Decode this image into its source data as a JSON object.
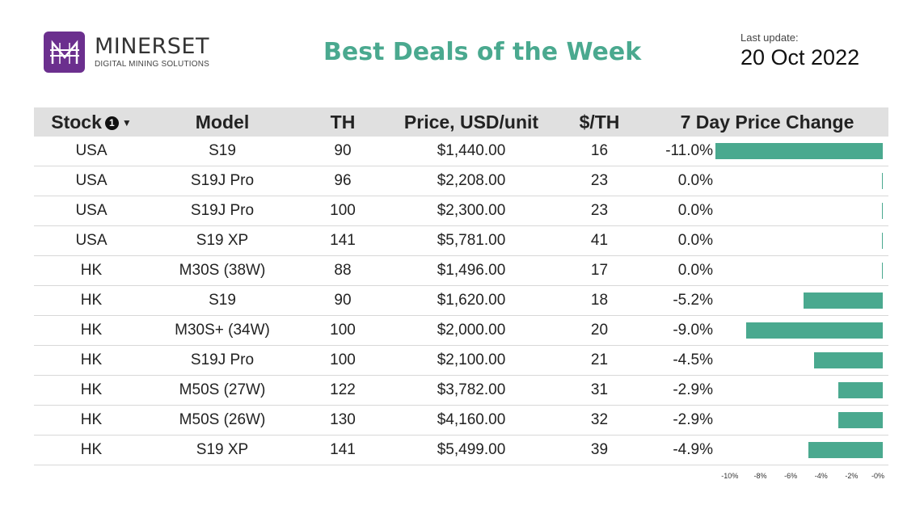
{
  "header": {
    "logo_name": "MINERSET",
    "logo_tagline": "DIGITAL MINING SOLUTIONS",
    "title": "Best Deals of the Week",
    "last_update_label": "Last update:",
    "last_update_date": "20 Oct 2022"
  },
  "colors": {
    "accent": "#4aa98f",
    "logo_bg": "#6b2f8e",
    "header_bg": "#e0e0e0"
  },
  "icons": {
    "logo": "minerset-logo-icon",
    "info": "info-icon",
    "sort": "sort-down-icon"
  },
  "chart_data": {
    "type": "table",
    "columns": [
      "Stock",
      "Model",
      "TH",
      "Price, USD/unit",
      "$/TH",
      "7 Day Price Change"
    ],
    "info_badge": "1",
    "sort_indicator": "▼",
    "rows": [
      {
        "stock": "USA",
        "model": "S19",
        "th": "90",
        "price": "$1,440.00",
        "per_th": "16",
        "change_label": "-11.0%",
        "change": -11.0
      },
      {
        "stock": "USA",
        "model": "S19J Pro",
        "th": "96",
        "price": "$2,208.00",
        "per_th": "23",
        "change_label": "0.0%",
        "change": 0.0
      },
      {
        "stock": "USA",
        "model": "S19J Pro",
        "th": "100",
        "price": "$2,300.00",
        "per_th": "23",
        "change_label": "0.0%",
        "change": 0.0
      },
      {
        "stock": "USA",
        "model": "S19 XP",
        "th": "141",
        "price": "$5,781.00",
        "per_th": "41",
        "change_label": "0.0%",
        "change": 0.0
      },
      {
        "stock": "HK",
        "model": "M30S (38W)",
        "th": "88",
        "price": "$1,496.00",
        "per_th": "17",
        "change_label": "0.0%",
        "change": 0.0
      },
      {
        "stock": "HK",
        "model": "S19",
        "th": "90",
        "price": "$1,620.00",
        "per_th": "18",
        "change_label": "-5.2%",
        "change": -5.2
      },
      {
        "stock": "HK",
        "model": "M30S+ (34W)",
        "th": "100",
        "price": "$2,000.00",
        "per_th": "20",
        "change_label": "-9.0%",
        "change": -9.0
      },
      {
        "stock": "HK",
        "model": "S19J Pro",
        "th": "100",
        "price": "$2,100.00",
        "per_th": "21",
        "change_label": "-4.5%",
        "change": -4.5
      },
      {
        "stock": "HK",
        "model": "M50S (27W)",
        "th": "122",
        "price": "$3,782.00",
        "per_th": "31",
        "change_label": "-2.9%",
        "change": -2.9
      },
      {
        "stock": "HK",
        "model": "M50S (26W)",
        "th": "130",
        "price": "$4,160.00",
        "per_th": "32",
        "change_label": "-2.9%",
        "change": -2.9
      },
      {
        "stock": "HK",
        "model": "S19 XP",
        "th": "141",
        "price": "$5,499.00",
        "per_th": "39",
        "change_label": "-4.9%",
        "change": -4.9
      }
    ],
    "bar_axis": {
      "range": [
        -11,
        0
      ],
      "ticks": [
        -10,
        -8,
        -6,
        -4,
        -2,
        0
      ],
      "tick_labels": [
        "-10%",
        "-8%",
        "-6%",
        "-4%",
        "-2%",
        "-0%"
      ]
    }
  }
}
